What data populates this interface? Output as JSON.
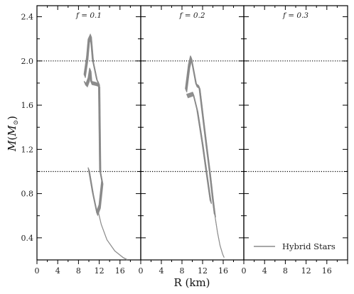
{
  "chart_data": [
    {
      "type": "line",
      "panel_label": "f = 0.1",
      "xlabel": "R (km)",
      "ylabel": "M(M⊙)",
      "xlim": [
        0,
        20
      ],
      "ylim": [
        0.2,
        2.5
      ],
      "xticks": [
        0,
        4,
        8,
        12,
        16
      ],
      "yticks": [
        0.4,
        0.8,
        1.2,
        1.6,
        2.0,
        2.4
      ],
      "hlines": [
        2.0,
        1.0
      ],
      "series": [
        {
          "band": "upper",
          "x": [
            9.2,
            9.7,
            10.0,
            10.4,
            10.8,
            11.6,
            12.0
          ],
          "y": [
            1.86,
            2.02,
            2.18,
            2.22,
            2.0,
            1.82,
            1.79
          ]
        },
        {
          "band": "upper-outline",
          "x": [
            9.2,
            9.6,
            10.0,
            10.3,
            10.5,
            11.4,
            11.9
          ],
          "y": [
            1.8,
            1.78,
            1.83,
            1.92,
            1.8,
            1.79,
            1.78
          ]
        },
        {
          "band": "lower",
          "x": [
            12.0,
            12.2,
            12.6,
            12.1,
            11.6,
            10.8,
            10.0
          ],
          "y": [
            1.78,
            1.0,
            0.9,
            0.68,
            0.62,
            0.8,
            1.02
          ]
        },
        {
          "band": "tail",
          "x": [
            11.8,
            12.4,
            13.5,
            15.0,
            16.6,
            17.4
          ],
          "y": [
            0.64,
            0.52,
            0.38,
            0.28,
            0.22,
            0.2
          ]
        }
      ]
    },
    {
      "type": "line",
      "panel_label": "f = 0.2",
      "xlabel": "R (km)",
      "ylabel": "M(M⊙)",
      "xlim": [
        0,
        20
      ],
      "ylim": [
        0.2,
        2.5
      ],
      "xticks": [
        0,
        4,
        8,
        12,
        16
      ],
      "yticks": [
        0.4,
        0.8,
        1.2,
        1.6,
        2.0,
        2.4
      ],
      "hlines": [
        2.0,
        1.0
      ],
      "series": [
        {
          "band": "upper",
          "x": [
            8.8,
            9.4,
            9.8,
            10.2,
            10.8,
            11.4
          ],
          "y": [
            1.73,
            1.95,
            2.03,
            1.93,
            1.78,
            1.76
          ]
        },
        {
          "band": "middle",
          "x": [
            11.4,
            12.2,
            12.8,
            13.4,
            14.0,
            14.4
          ],
          "y": [
            1.76,
            1.45,
            1.22,
            1.0,
            0.75,
            0.6
          ]
        },
        {
          "band": "middle-outline",
          "x": [
            9.0,
            10.2,
            11.0,
            12.0,
            12.9,
            13.6
          ],
          "y": [
            1.68,
            1.7,
            1.55,
            1.25,
            0.95,
            0.72
          ]
        },
        {
          "band": "tail",
          "x": [
            14.4,
            14.9,
            15.4,
            15.9,
            16.2
          ],
          "y": [
            0.6,
            0.45,
            0.33,
            0.25,
            0.22
          ]
        }
      ]
    },
    {
      "type": "line",
      "panel_label": "f = 0.3",
      "xlabel": "R (km)",
      "ylabel": "M(M⊙)",
      "xlim": [
        0,
        20
      ],
      "ylim": [
        0.2,
        2.5
      ],
      "xticks": [
        0,
        4,
        8,
        12,
        16
      ],
      "yticks": [
        0.4,
        0.8,
        1.2,
        1.6,
        2.0,
        2.4
      ],
      "hlines": [
        2.0,
        1.0
      ],
      "series": []
    }
  ],
  "axes": {
    "xlabel": "R (km)",
    "ylabel": "M(M⊙)",
    "ylabel_main": "M",
    "ylabel_paren_open": "(",
    "ylabel_sub": "M",
    "ylabel_sub_symbol": "⊙",
    "ylabel_paren_close": ")"
  },
  "legend": {
    "label": "Hybrid Stars",
    "placement": "bottom-right"
  },
  "colors": {
    "curve": "#8a8a8a",
    "axes": "#000000",
    "reference_line": "#000000"
  }
}
